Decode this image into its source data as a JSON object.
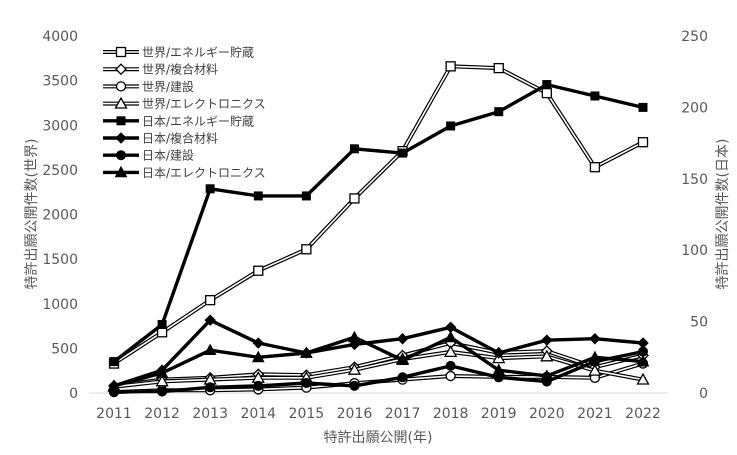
{
  "chart_data": {
    "type": "line",
    "title": "",
    "xlabel": "特許出願公開(年)",
    "ylabel_left": "特許出願公開件数(世界)",
    "ylabel_right": "特許出願公開件数(日本)",
    "x": [
      "2011",
      "2012",
      "2013",
      "2014",
      "2015",
      "2016",
      "2017",
      "2018",
      "2019",
      "2020",
      "2021",
      "2022"
    ],
    "ylim_left": [
      0,
      4000
    ],
    "yticks_left": [
      "0",
      "500",
      "1000",
      "1500",
      "2000",
      "2500",
      "3000",
      "3500",
      "4000"
    ],
    "ylim_right": [
      0,
      250
    ],
    "yticks_right": [
      "0",
      "50",
      "100",
      "150",
      "200",
      "250"
    ],
    "grid": false,
    "legend_position": "top-left",
    "series": [
      {
        "name": "世界/エネルギー貯蔵",
        "axis": "left",
        "group": "world",
        "marker": "square-open",
        "values": [
          330,
          680,
          1040,
          1370,
          1610,
          2180,
          2710,
          3660,
          3640,
          3360,
          2530,
          2810
        ]
      },
      {
        "name": "世界/複合材料",
        "axis": "left",
        "group": "world",
        "marker": "diamond-open",
        "values": [
          80,
          150,
          170,
          210,
          200,
          290,
          420,
          560,
          450,
          470,
          290,
          420
        ]
      },
      {
        "name": "世界/建設",
        "axis": "left",
        "group": "world",
        "marker": "circle-open",
        "values": [
          10,
          30,
          30,
          40,
          60,
          110,
          150,
          190,
          180,
          180,
          170,
          330
        ]
      },
      {
        "name": "世界/エレクトロニクス",
        "axis": "left",
        "group": "world",
        "marker": "triangle-open",
        "values": [
          70,
          130,
          150,
          170,
          170,
          260,
          380,
          460,
          390,
          410,
          250,
          150
        ]
      },
      {
        "name": "日本/エネルギー貯蔵",
        "axis": "right",
        "group": "japan",
        "marker": "square-filled",
        "values": [
          22,
          48,
          143,
          138,
          138,
          171,
          168,
          187,
          197,
          216,
          208,
          200
        ]
      },
      {
        "name": "日本/複合材料",
        "axis": "right",
        "group": "japan",
        "marker": "diamond-filled",
        "values": [
          5,
          16,
          51,
          35,
          28,
          34,
          38,
          46,
          28,
          37,
          38,
          35
        ]
      },
      {
        "name": "日本/建設",
        "axis": "right",
        "group": "japan",
        "marker": "circle-filled",
        "values": [
          1,
          1,
          4,
          5,
          7,
          5,
          11,
          19,
          11,
          8,
          22,
          29
        ]
      },
      {
        "name": "日本/エレクトロニクス",
        "axis": "right",
        "group": "japan",
        "marker": "triangle-filled",
        "values": [
          5,
          14,
          30,
          25,
          28,
          39,
          23,
          39,
          16,
          12,
          25,
          22
        ]
      }
    ]
  }
}
